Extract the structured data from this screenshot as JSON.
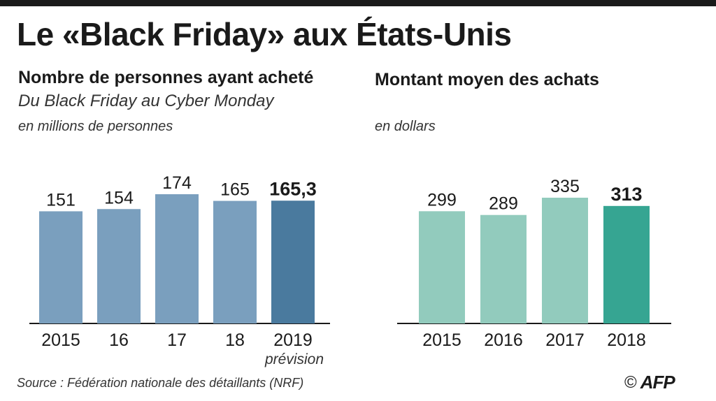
{
  "title": "Le «Black Friday» aux États-Unis",
  "source": "Source : Fédération nationale des détaillants (NRF)",
  "credit": {
    "copyright": "©",
    "logo": "AFP"
  },
  "chart_data": [
    {
      "type": "bar",
      "title": "Nombre de personnes ayant acheté",
      "subtitle": "Du Black Friday au Cyber Monday",
      "unit": "en millions de personnes",
      "categories": [
        "2015",
        "16",
        "17",
        "18",
        "2019"
      ],
      "values": [
        151,
        154,
        174,
        165,
        165.3
      ],
      "value_labels": [
        "151",
        "154",
        "174",
        "165",
        "165,3"
      ],
      "highlight_index": 4,
      "category_notes": [
        "",
        "",
        "",
        "",
        "prévision"
      ],
      "ylim": [
        0,
        180
      ],
      "grid": false,
      "colors": {
        "bar": "#7a9fbe",
        "highlight": "#4a7a9e"
      }
    },
    {
      "type": "bar",
      "title": "Montant moyen des achats",
      "subtitle": "",
      "unit": "en dollars",
      "categories": [
        "2015",
        "2016",
        "2017",
        "2018"
      ],
      "values": [
        299,
        289,
        335,
        313
      ],
      "value_labels": [
        "299",
        "289",
        "335",
        "313"
      ],
      "highlight_index": 3,
      "category_notes": [
        "",
        "",
        "",
        ""
      ],
      "ylim": [
        0,
        350
      ],
      "grid": false,
      "colors": {
        "bar": "#92cbbd",
        "highlight": "#36a592"
      }
    }
  ]
}
